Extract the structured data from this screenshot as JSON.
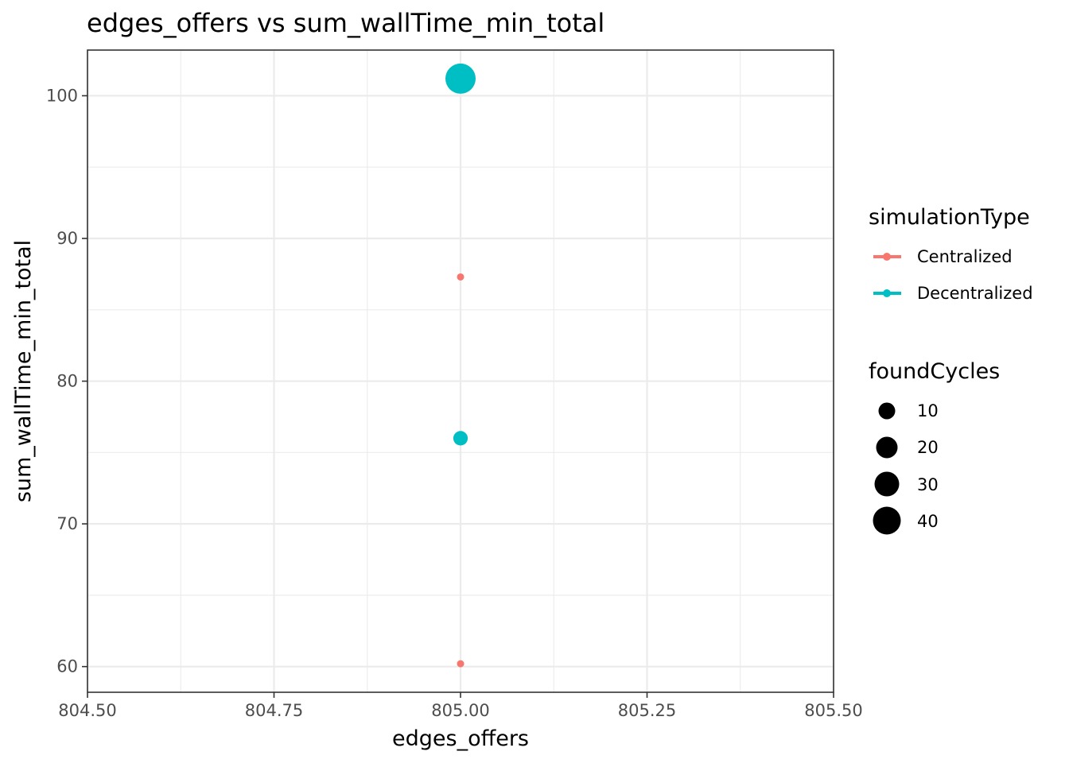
{
  "chart_data": {
    "type": "scatter",
    "title": "edges_offers  vs  sum_wallTime_min_total",
    "xlabel": "edges_offers",
    "ylabel": "sum_wallTime_min_total",
    "xlim": [
      804.5,
      805.5
    ],
    "ylim": [
      58.2,
      103.2
    ],
    "x_ticks": [
      "804.50",
      "804.75",
      "805.00",
      "805.25",
      "805.50"
    ],
    "y_ticks": [
      "60",
      "70",
      "80",
      "90",
      "100"
    ],
    "grid": true,
    "legend_position": "right",
    "color_legend": {
      "title": "simulationType",
      "entries": [
        {
          "label": "Centralized",
          "color": "#F8766D"
        },
        {
          "label": "Decentralized",
          "color": "#00BFC4"
        }
      ]
    },
    "size_legend": {
      "title": "foundCycles",
      "entries": [
        "10",
        "20",
        "30",
        "40"
      ],
      "values": [
        10,
        20,
        30,
        40
      ]
    },
    "series": [
      {
        "name": "Centralized",
        "color": "#F8766D",
        "points": [
          {
            "x": 805.0,
            "y": 87.3,
            "size": 1
          },
          {
            "x": 805.0,
            "y": 60.2,
            "size": 1
          }
        ]
      },
      {
        "name": "Decentralized",
        "color": "#00BFC4",
        "points": [
          {
            "x": 805.0,
            "y": 101.2,
            "size": 46
          },
          {
            "x": 805.0,
            "y": 76.0,
            "size": 8
          }
        ]
      }
    ]
  }
}
